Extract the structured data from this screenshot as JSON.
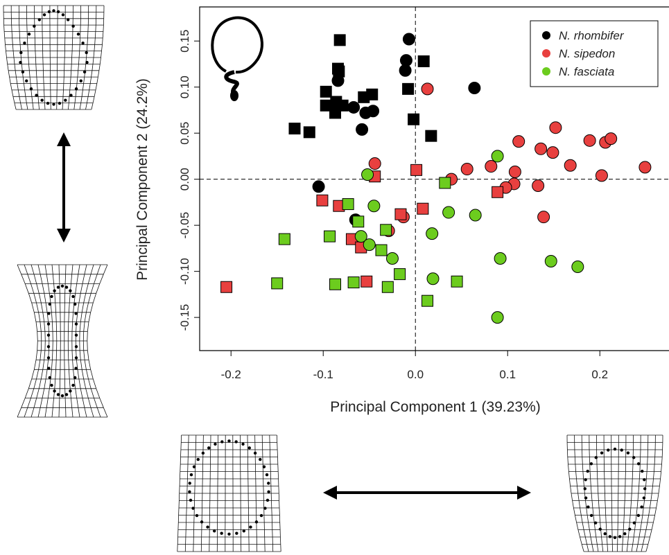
{
  "chart_data": {
    "type": "scatter",
    "x_label": "Principal Component 1 (39.23%)",
    "y_label": "Principal Component 2 (24.2%)",
    "xlim": [
      -0.234,
      0.275
    ],
    "ylim": [
      -0.186,
      0.187
    ],
    "xticks": [
      -0.2,
      -0.1,
      {
        "value": 0,
        "label": "0.0"
      },
      0.1,
      0.2
    ],
    "yticks": [
      -0.15,
      {
        "value": -0.1,
        "label": "-0.10"
      },
      -0.05,
      {
        "value": 0,
        "label": "0.00"
      },
      0.05,
      {
        "value": 0.1,
        "label": "0.10"
      },
      0.15
    ],
    "legend": "top-right",
    "series": [
      {
        "name": "N. rhombifer",
        "color": "#000000",
        "x": [
          -0.007,
          -0.01,
          -0.011,
          -0.084,
          0.064,
          -0.067,
          -0.054,
          -0.046,
          -0.058,
          -0.105,
          -0.065,
          -0.082,
          -0.084,
          -0.083,
          -0.097,
          -0.097,
          -0.086,
          -0.087,
          -0.079,
          -0.056,
          -0.047,
          -0.131,
          -0.115,
          -0.008,
          -0.002,
          0.009,
          0.017
        ],
        "y": [
          0.152,
          0.129,
          0.118,
          0.107,
          0.099,
          0.078,
          0.072,
          0.074,
          0.054,
          -0.008,
          -0.044,
          0.151,
          0.12,
          0.117,
          0.095,
          0.08,
          0.084,
          0.072,
          0.08,
          0.089,
          0.092,
          0.055,
          0.051,
          0.098,
          0.065,
          0.128,
          0.047
        ],
        "markers": [
          "circle",
          "circle",
          "circle",
          "circle",
          "circle",
          "circle",
          "circle",
          "circle",
          "circle",
          "circle",
          "circle",
          "square",
          "square",
          "square",
          "square",
          "square",
          "square",
          "square",
          "square",
          "square",
          "square",
          "square",
          "square",
          "square",
          "square",
          "square",
          "square"
        ]
      },
      {
        "name": "N. sipedon",
        "color": "#e8403f",
        "x": [
          0.013,
          -0.044,
          0.056,
          0.082,
          0.108,
          0.107,
          0.098,
          0.112,
          0.136,
          0.149,
          0.152,
          0.168,
          0.189,
          0.206,
          0.212,
          0.202,
          0.249,
          0.133,
          0.139,
          0.039,
          -0.013,
          -0.029,
          0.001,
          -0.044,
          -0.101,
          -0.083,
          -0.016,
          0.008,
          -0.069,
          -0.059,
          -0.053,
          -0.205,
          0.089
        ],
        "y": [
          0.098,
          0.017,
          0.011,
          0.014,
          0.008,
          -0.005,
          -0.009,
          0.041,
          0.033,
          0.029,
          0.056,
          0.015,
          0.042,
          0.04,
          0.044,
          0.004,
          0.013,
          -0.007,
          -0.041,
          0.0,
          -0.041,
          -0.056,
          0.01,
          0.003,
          -0.023,
          -0.029,
          -0.038,
          -0.032,
          -0.065,
          -0.074,
          -0.111,
          -0.117,
          -0.014
        ],
        "markers": [
          "circle",
          "circle",
          "circle",
          "circle",
          "circle",
          "circle",
          "circle",
          "circle",
          "circle",
          "circle",
          "circle",
          "circle",
          "circle",
          "circle",
          "circle",
          "circle",
          "circle",
          "circle",
          "circle",
          "circle",
          "circle",
          "circle",
          "square",
          "square",
          "square",
          "square",
          "square",
          "square",
          "square",
          "square",
          "square",
          "square",
          "square"
        ]
      },
      {
        "name": "N. fasciata",
        "color": "#6ccc1e",
        "x": [
          -0.052,
          0.089,
          -0.045,
          0.036,
          0.065,
          0.018,
          -0.059,
          -0.05,
          -0.025,
          0.092,
          0.147,
          0.176,
          0.019,
          0.089,
          0.032,
          -0.073,
          -0.062,
          -0.032,
          -0.037,
          -0.142,
          -0.093,
          -0.15,
          -0.087,
          -0.067,
          -0.017,
          -0.03,
          0.013,
          0.045
        ],
        "y": [
          0.005,
          0.025,
          -0.029,
          -0.036,
          -0.039,
          -0.059,
          -0.062,
          -0.071,
          -0.086,
          -0.086,
          -0.089,
          -0.095,
          -0.108,
          -0.15,
          -0.004,
          -0.027,
          -0.046,
          -0.055,
          -0.077,
          -0.065,
          -0.062,
          -0.113,
          -0.114,
          -0.112,
          -0.103,
          -0.117,
          -0.132,
          -0.111
        ],
        "markers": [
          "circle",
          "circle",
          "circle",
          "circle",
          "circle",
          "circle",
          "circle",
          "circle",
          "circle",
          "circle",
          "circle",
          "circle",
          "circle",
          "circle",
          "square",
          "square",
          "square",
          "square",
          "square",
          "square",
          "square",
          "square",
          "square",
          "square",
          "square",
          "square",
          "square",
          "square"
        ]
      }
    ]
  }
}
